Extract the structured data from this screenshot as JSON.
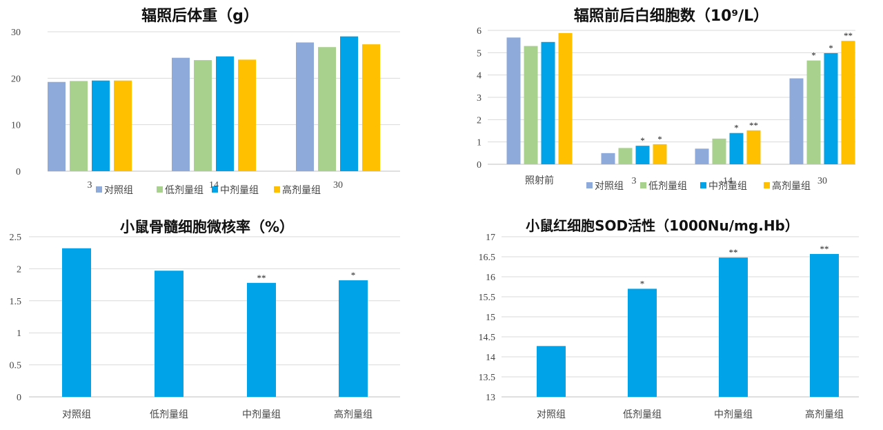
{
  "colors": {
    "对照组": "#8eaadb",
    "低剂量组": "#a9d18e",
    "中剂量组": "#00a2e8",
    "高剂量组": "#ffc000",
    "single": "#00a2e8",
    "grid": "#d9d9d9",
    "axis": "#bfbfbf"
  },
  "chart_data": [
    {
      "type": "bar",
      "title": "辐照后体重（g）",
      "categories": [
        "3",
        "14",
        "30"
      ],
      "series": [
        {
          "name": "对照组",
          "values": [
            19.2,
            24.4,
            27.7
          ]
        },
        {
          "name": "低剂量组",
          "values": [
            19.4,
            23.9,
            26.7
          ]
        },
        {
          "name": "中剂量组",
          "values": [
            19.5,
            24.7,
            29.0
          ]
        },
        {
          "name": "高剂量组",
          "values": [
            19.5,
            24.0,
            27.3
          ]
        }
      ],
      "ylim": [
        0,
        30
      ],
      "yticks": [
        "0",
        "10",
        "20",
        "30"
      ],
      "xlabel": "",
      "ylabel": "",
      "legend": "bottom"
    },
    {
      "type": "bar",
      "title": "辐照前后白细胞数（10⁹/L）",
      "categories": [
        "照射前",
        "3",
        "14",
        "30"
      ],
      "series": [
        {
          "name": "对照组",
          "values": [
            5.68,
            0.5,
            0.7,
            3.85
          ],
          "marks": [
            "",
            "",
            "",
            ""
          ]
        },
        {
          "name": "低剂量组",
          "values": [
            5.3,
            0.73,
            1.15,
            4.65
          ],
          "marks": [
            "",
            "",
            "",
            "*"
          ]
        },
        {
          "name": "中剂量组",
          "values": [
            5.48,
            0.83,
            1.4,
            4.98
          ],
          "marks": [
            "",
            "*",
            "*",
            "*"
          ]
        },
        {
          "name": "高剂量组",
          "values": [
            5.88,
            0.9,
            1.52,
            5.53
          ],
          "marks": [
            "",
            "*",
            "**",
            "**"
          ]
        }
      ],
      "ylim": [
        0,
        6
      ],
      "yticks": [
        "0",
        "1",
        "2",
        "3",
        "4",
        "5",
        "6"
      ],
      "xlabel": "",
      "ylabel": "",
      "legend": "bottom"
    },
    {
      "type": "bar",
      "title": "小鼠骨髓细胞微核率（%）",
      "categories": [
        "对照组",
        "低剂量组",
        "中剂量组",
        "高剂量组"
      ],
      "values": [
        2.32,
        1.97,
        1.78,
        1.82
      ],
      "marks": [
        "",
        "",
        "**",
        "*"
      ],
      "ylim": [
        0,
        2.5
      ],
      "yticks": [
        "0",
        "0.5",
        "1",
        "1.5",
        "2",
        "2.5"
      ],
      "xlabel": "",
      "ylabel": ""
    },
    {
      "type": "bar",
      "title": "小鼠红细胞SOD活性（1000Nu/mg.Hb）",
      "categories": [
        "对照组",
        "低剂量组",
        "中剂量组",
        "高剂量组"
      ],
      "values": [
        14.27,
        15.7,
        16.48,
        16.57
      ],
      "marks": [
        "",
        "*",
        "**",
        "**"
      ],
      "ylim": [
        13,
        17
      ],
      "yticks": [
        "13",
        "13.5",
        "14",
        "14.5",
        "15",
        "15.5",
        "16",
        "16.5",
        "17"
      ],
      "xlabel": "",
      "ylabel": ""
    }
  ]
}
